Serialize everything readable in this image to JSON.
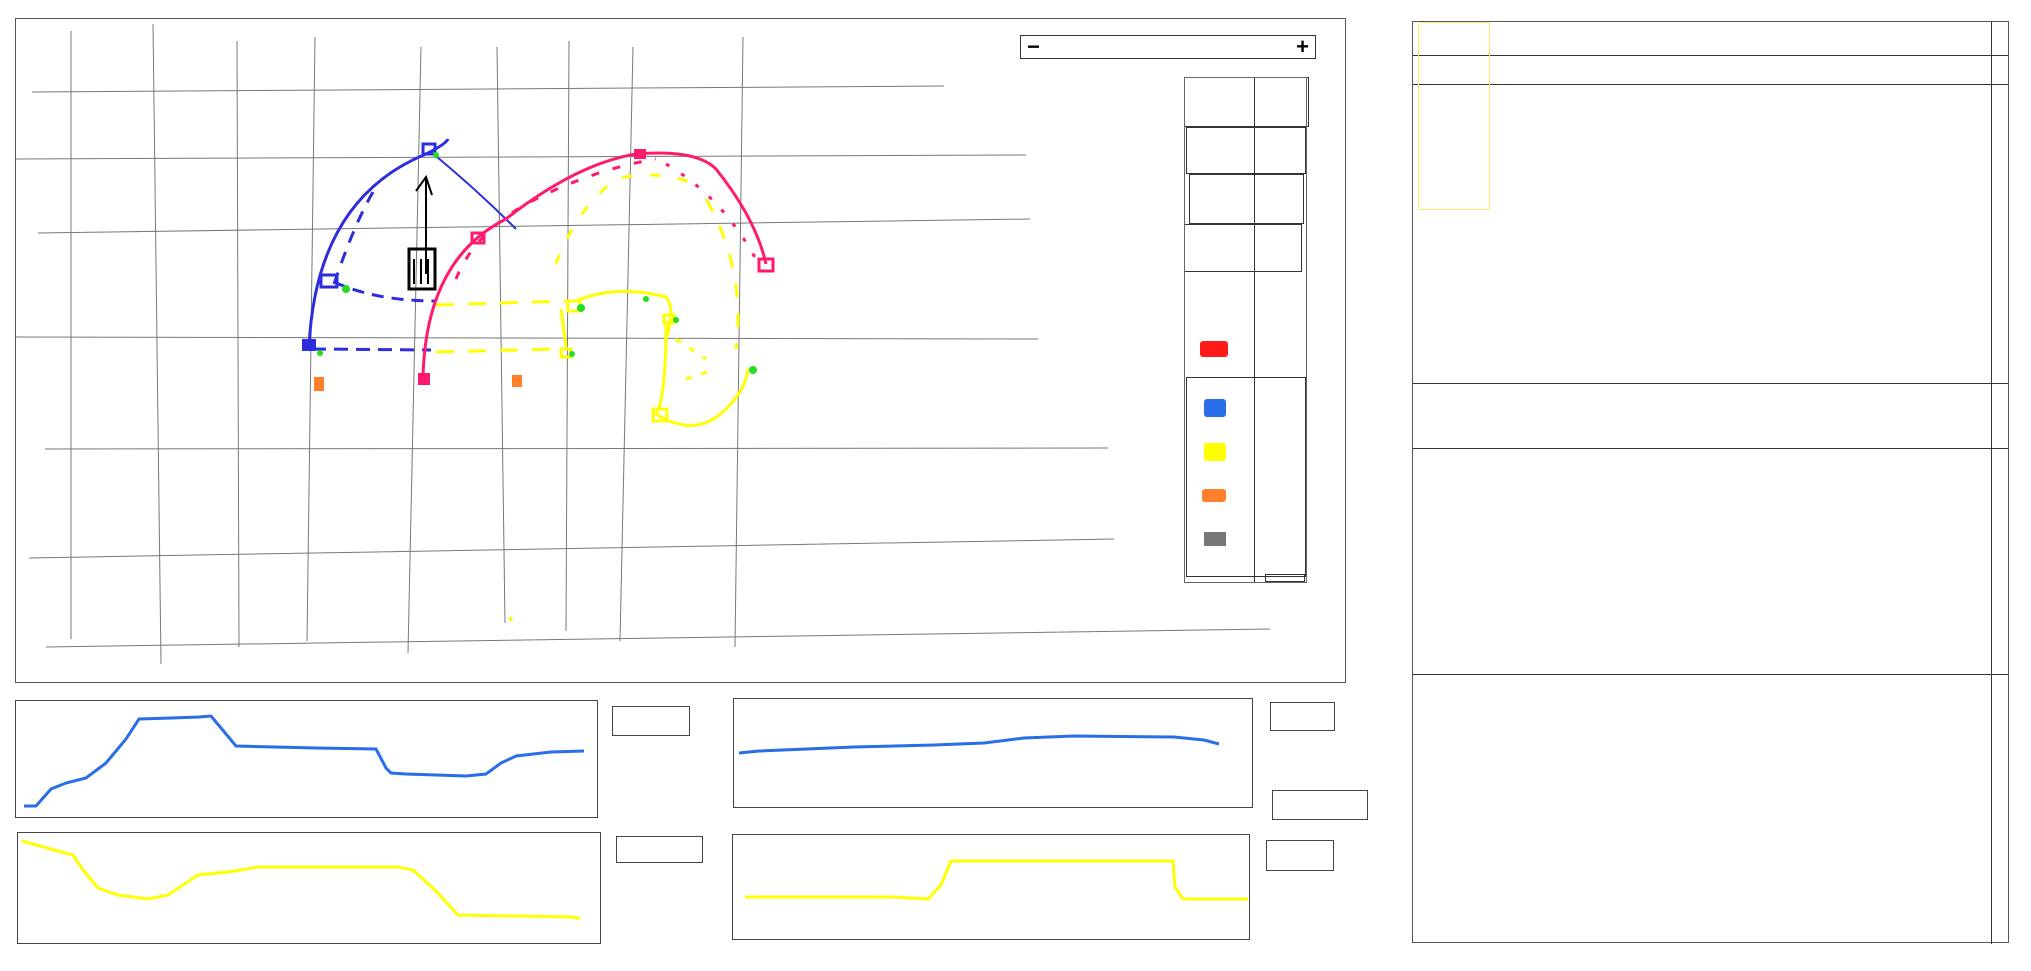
{
  "zoom": {
    "minus": "−",
    "plus": "+"
  },
  "legend": {
    "items": [
      {
        "icon": "red-marker-icon",
        "color": "#ff1a1a"
      },
      {
        "icon": "blue-marker-icon",
        "color": "#2a6de8"
      },
      {
        "icon": "yellow-marker-icon",
        "color": "#ffff00"
      },
      {
        "icon": "orange-marker-icon",
        "color": "#ff7f2a"
      },
      {
        "icon": "gray-marker-icon",
        "color": "#777777"
      }
    ]
  },
  "colors": {
    "blue_path": "#2d2dde",
    "pink_path": "#ff1a6e",
    "yellow_path": "#ffff00",
    "waypoint_green": "#22dd22",
    "orange_marker": "#ff7f2a",
    "grid": "#777777"
  },
  "panels": {
    "chart_blue_1": {
      "color": "#2a6de8"
    },
    "chart_blue_2": {
      "color": "#2a6de8"
    },
    "chart_yellow_1": {
      "color": "#ffff00"
    },
    "chart_yellow_2": {
      "color": "#ffff00"
    }
  }
}
